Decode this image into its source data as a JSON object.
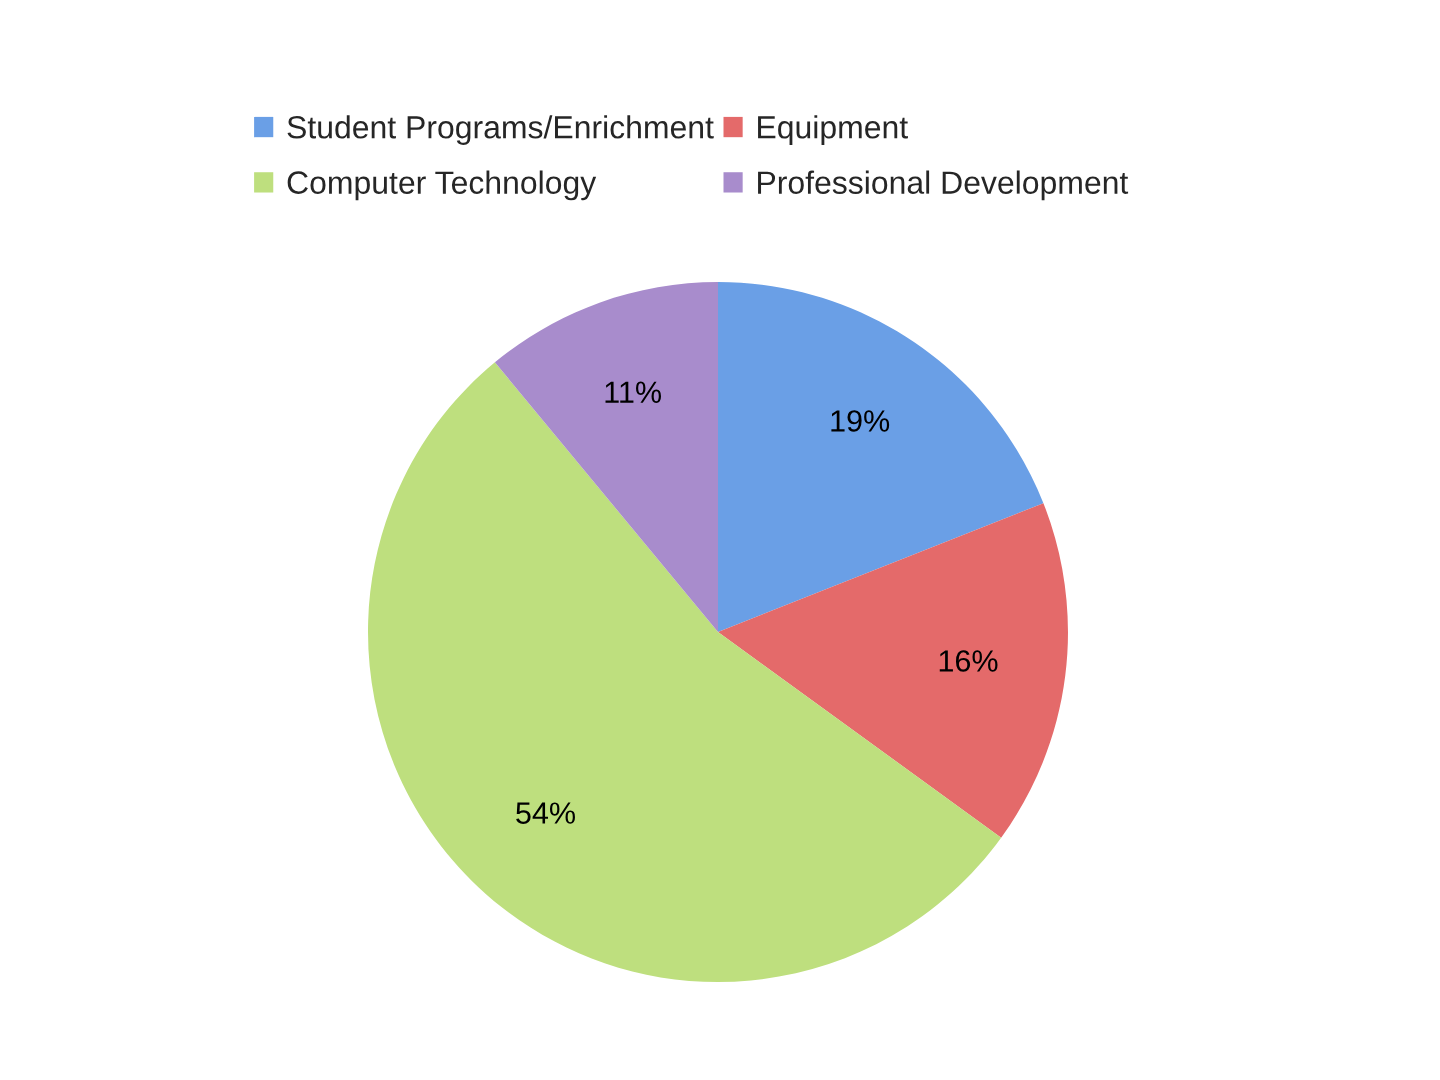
{
  "chart_data": {
    "type": "pie",
    "categories": [
      "Student Programs/Enrichment",
      "Equipment",
      "Computer Technology",
      "Professional Development"
    ],
    "values": [
      19,
      16,
      54,
      11
    ],
    "colors": [
      "#6a9fe6",
      "#e46a6a",
      "#bedf7e",
      "#a88ccc"
    ],
    "value_labels": [
      "19%",
      "16%",
      "54%",
      "11%"
    ],
    "legend": "top"
  }
}
